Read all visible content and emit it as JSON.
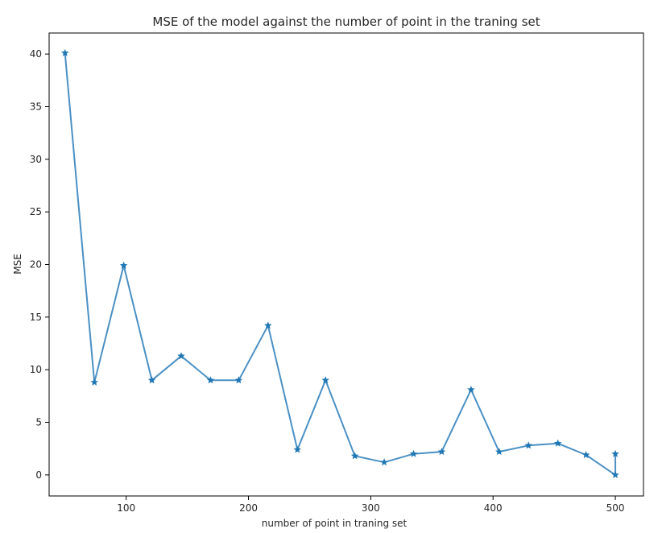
{
  "chart_data": {
    "type": "line",
    "title": "MSE of the model against the number of point in the traning set",
    "xlabel": "number of point in traning set",
    "ylabel": "MSE",
    "xlim": [
      37,
      523
    ],
    "ylim": [
      -2,
      42
    ],
    "xticks": [
      100,
      200,
      300,
      400,
      500
    ],
    "yticks": [
      0,
      5,
      10,
      15,
      20,
      25,
      30,
      35,
      40
    ],
    "grid": false,
    "marker": "star",
    "line_color": "#4a90c4",
    "marker_color": "#1f77b4",
    "series": [
      {
        "x": [
          50,
          74,
          98,
          121,
          145,
          169,
          192,
          216,
          240,
          263,
          287,
          311,
          335,
          358,
          382,
          405,
          429,
          453,
          476,
          500,
          500
        ],
        "y": [
          40.1,
          8.8,
          19.9,
          9.0,
          11.3,
          9.0,
          9.0,
          14.2,
          2.4,
          9.0,
          1.8,
          1.2,
          2.0,
          2.2,
          8.1,
          2.2,
          2.8,
          3.0,
          1.9,
          0.0,
          2.0
        ]
      }
    ]
  }
}
